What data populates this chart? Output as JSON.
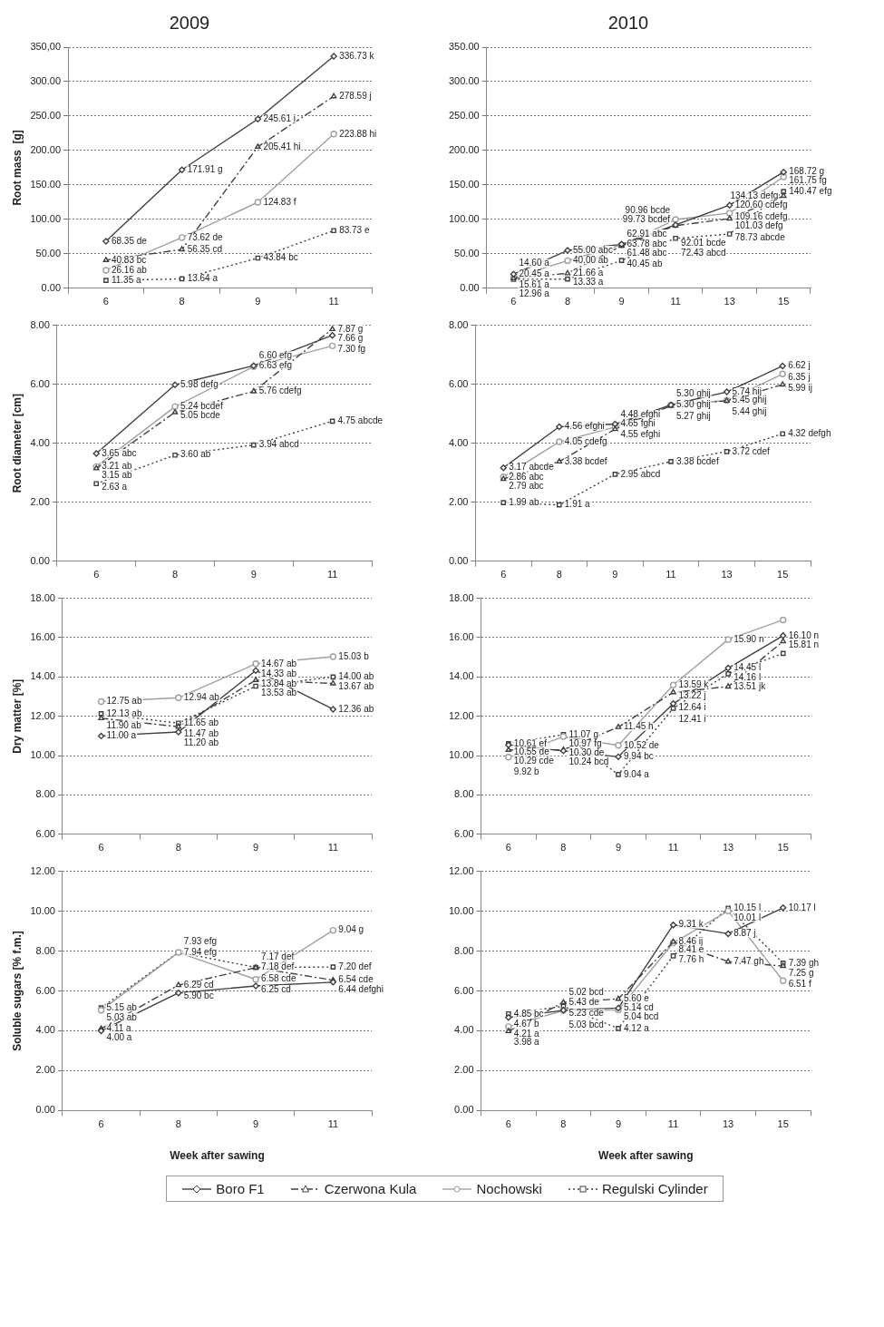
{
  "chart_data": [
    {
      "type": "line",
      "title": "2009",
      "ylabel": "Root mass  [g]",
      "categories": [
        "6",
        "8",
        "9",
        "11"
      ],
      "ylim": [
        0,
        350
      ],
      "yticks": [
        {
          "value": 0,
          "label": "0.00"
        },
        {
          "value": 50,
          "label": "50.00"
        },
        {
          "value": 100,
          "label": "100.00"
        },
        {
          "value": 150,
          "label": "150.00"
        },
        {
          "value": 200,
          "label": "200.00"
        },
        {
          "value": 250,
          "label": "250.00"
        },
        {
          "value": 300,
          "label": "300.00"
        },
        {
          "value": 350,
          "label": "350,00"
        }
      ],
      "grid": "y",
      "series": [
        {
          "color": "#404040",
          "marker": "diamond",
          "line_style": "solid",
          "values": [
            68.35,
            171.91,
            245.61,
            336.73
          ],
          "value_labels": [
            "68.35 de",
            "171.91 g",
            "245.61 i",
            "336.73 k"
          ]
        },
        {
          "color": "#404040",
          "marker": "triangle",
          "line_style": "dashed",
          "values": [
            40.83,
            56.35,
            205.41,
            278.59
          ],
          "value_labels": [
            "40.83 bc",
            "56.35 cd",
            "205.41 hi",
            "278.59 j"
          ]
        },
        {
          "color": "#a0a0a0",
          "marker": "circle",
          "line_style": "solid",
          "values": [
            26.16,
            73.62,
            124.83,
            223.88
          ],
          "value_labels": [
            "26.16 ab",
            "73.62 de",
            "124.83 f",
            "223.88 hi"
          ]
        },
        {
          "color": "#404040",
          "marker": "square",
          "line_style": "dotted",
          "values": [
            11.35,
            13.64,
            43.84,
            83.73
          ],
          "value_labels": [
            "11.35 a",
            "13.64 a",
            "43.84 bc",
            "83.73 e"
          ]
        }
      ]
    },
    {
      "type": "line",
      "title": "2010",
      "categories": [
        "6",
        "8",
        "9",
        "11",
        "13",
        "15"
      ],
      "ylim": [
        0,
        350
      ],
      "yticks": [
        {
          "value": 0,
          "label": "0.00"
        },
        {
          "value": 50,
          "label": "50.00"
        },
        {
          "value": 100,
          "label": "100.00"
        },
        {
          "value": 150,
          "label": "150.00"
        },
        {
          "value": 200,
          "label": "200.00"
        },
        {
          "value": 250,
          "label": "250.00"
        },
        {
          "value": 300,
          "label": "300.00"
        },
        {
          "value": 350,
          "label": "350.00"
        }
      ],
      "grid": "y",
      "series": [
        {
          "color": "#404040",
          "marker": "diamond",
          "line_style": "solid",
          "values": [
            20.45,
            55.0,
            63.78,
            92.01,
            120.6,
            168.72
          ],
          "value_labels": [
            "20.45 a",
            "55.00 abc",
            "63.78 abc",
            "92.01 bcde",
            "120.60 cdefg",
            "168.72 g"
          ]
        },
        {
          "color": "#404040",
          "marker": "triangle",
          "line_style": "dashed",
          "values": [
            14.6,
            21.66,
            61.48,
            90.96,
            101.03,
            134.13
          ],
          "value_labels": [
            "14.60 a",
            "21.66 a",
            "61.48 abc",
            "90.96 bcde",
            "101.03 defg",
            "134.13 defg"
          ]
        },
        {
          "color": "#a0a0a0",
          "marker": "circle",
          "line_style": "solid",
          "values": [
            15.61,
            40.0,
            62.91,
            99.73,
            109.16,
            161.75
          ],
          "value_labels": [
            "15.61 a",
            "40.00 ab",
            "62.91 abc",
            "99.73 bcdef",
            "109.16 cdefg",
            "161.75 fg"
          ]
        },
        {
          "color": "#404040",
          "marker": "square",
          "line_style": "dotted",
          "values": [
            12.96,
            13.33,
            40.45,
            72.43,
            78.73,
            140.47
          ],
          "value_labels": [
            "12.96 a",
            "13.33 a",
            "40.45 ab",
            "72.43 abcd",
            "78.73 abcde",
            "140.47 efg"
          ]
        }
      ]
    },
    {
      "type": "line",
      "ylabel": "Root diameter [cm]",
      "categories": [
        "6",
        "8",
        "9",
        "11"
      ],
      "ylim": [
        0,
        8
      ],
      "yticks": [
        {
          "value": 0,
          "label": "0.00"
        },
        {
          "value": 2,
          "label": "2.00"
        },
        {
          "value": 4,
          "label": "4.00"
        },
        {
          "value": 6,
          "label": "6.00"
        },
        {
          "value": 8,
          "label": "8.00"
        }
      ],
      "grid": "y",
      "series": [
        {
          "color": "#404040",
          "marker": "diamond",
          "line_style": "solid",
          "values": [
            3.65,
            5.98,
            6.63,
            7.66
          ],
          "value_labels": [
            "3.65 abc",
            "5.98 defg",
            "6.63 efg",
            "7.66 g"
          ]
        },
        {
          "color": "#404040",
          "marker": "triangle",
          "line_style": "dashed",
          "values": [
            3.15,
            5.05,
            5.76,
            7.87
          ],
          "value_labels": [
            "3.15 ab",
            "5.05 bcde",
            "5.76 cdefg",
            "7.87 g"
          ]
        },
        {
          "color": "#a0a0a0",
          "marker": "circle",
          "line_style": "solid",
          "values": [
            3.21,
            5.24,
            6.6,
            7.3
          ],
          "value_labels": [
            "3.21 ab",
            "5.24 bcdef",
            "6.60 efg",
            "7.30 fg"
          ]
        },
        {
          "color": "#404040",
          "marker": "square",
          "line_style": "dotted",
          "values": [
            2.63,
            3.6,
            3.94,
            4.75
          ],
          "value_labels": [
            "2.63 a",
            "3.60 ab",
            "3.94 abcd",
            "4.75 abcde"
          ]
        }
      ]
    },
    {
      "type": "line",
      "categories": [
        "6",
        "8",
        "9",
        "11",
        "13",
        "15"
      ],
      "ylim": [
        0,
        8
      ],
      "yticks": [
        {
          "value": 0,
          "label": "0.00"
        },
        {
          "value": 2,
          "label": "2.00"
        },
        {
          "value": 4,
          "label": "4.00"
        },
        {
          "value": 6,
          "label": "6.00"
        },
        {
          "value": 8,
          "label": "8.00"
        }
      ],
      "grid": "y",
      "series": [
        {
          "color": "#404040",
          "marker": "diamond",
          "line_style": "solid",
          "values": [
            3.17,
            4.56,
            4.65,
            5.3,
            5.74,
            6.62
          ],
          "value_labels": [
            "3.17 abcde",
            "4.56 efghi",
            "4.65 fghi",
            "5.30 ghij",
            "5.74 hij",
            "6.62 j"
          ]
        },
        {
          "color": "#404040",
          "marker": "triangle",
          "line_style": "dashed",
          "values": [
            2.79,
            3.38,
            4.48,
            5.27,
            5.44,
            5.99
          ],
          "value_labels": [
            "2.79 abc",
            "3.38 bcdef",
            "4.48 efghi",
            "5.27 ghij",
            "5.44 ghij",
            "5.99 ij"
          ]
        },
        {
          "color": "#a0a0a0",
          "marker": "circle",
          "line_style": "solid",
          "values": [
            2.86,
            4.05,
            4.55,
            5.3,
            5.45,
            6.35
          ],
          "value_labels": [
            "2.86 abc",
            "4.05 cdefg",
            "4.55 efghi",
            "5.30 ghij",
            "5.45 ghij",
            "6.35 j"
          ]
        },
        {
          "color": "#404040",
          "marker": "square",
          "line_style": "dotted",
          "values": [
            1.99,
            1.91,
            2.95,
            3.38,
            3.72,
            4.32
          ],
          "value_labels": [
            "1.99 ab",
            "1.91 a",
            "2.95 abcd",
            "3.38 bcdef",
            "3.72 cdef",
            "4.32 defgh"
          ]
        }
      ]
    },
    {
      "type": "line",
      "ylabel": "Dry matter [%]",
      "categories": [
        "6",
        "8",
        "9",
        "11"
      ],
      "ylim": [
        6,
        18
      ],
      "yticks": [
        {
          "value": 6,
          "label": "6.00"
        },
        {
          "value": 8,
          "label": "8.00"
        },
        {
          "value": 10,
          "label": "10.00"
        },
        {
          "value": 12,
          "label": "12.00"
        },
        {
          "value": 14,
          "label": "14.00"
        },
        {
          "value": 16,
          "label": "16.00"
        },
        {
          "value": 18,
          "label": "18.00"
        }
      ],
      "grid": "y",
      "series": [
        {
          "color": "#404040",
          "marker": "diamond",
          "line_style": "solid",
          "values": [
            11.0,
            11.2,
            14.33,
            12.36
          ],
          "value_labels": [
            "11.00 a",
            "11.20 ab",
            "14.33 ab",
            "12.36 ab"
          ]
        },
        {
          "color": "#404040",
          "marker": "triangle",
          "line_style": "dashed",
          "values": [
            11.9,
            11.47,
            13.84,
            13.67
          ],
          "value_labels": [
            "11.90 ab",
            "11.47 ab",
            "13.84 ab",
            "13.67 ab"
          ]
        },
        {
          "color": "#a0a0a0",
          "marker": "circle",
          "line_style": "solid",
          "values": [
            12.75,
            12.94,
            14.67,
            15.03
          ],
          "value_labels": [
            "12.75 ab",
            "12.94 ab",
            "14.67 ab",
            "15.03 b"
          ]
        },
        {
          "color": "#404040",
          "marker": "square",
          "line_style": "dotted",
          "values": [
            12.13,
            11.65,
            13.53,
            14.0
          ],
          "value_labels": [
            "12.13 ab",
            "11.65 ab",
            "13.53 ab",
            "14.00 ab"
          ]
        }
      ]
    },
    {
      "type": "line",
      "categories": [
        "6",
        "8",
        "9",
        "11",
        "13",
        "15"
      ],
      "ylim": [
        6,
        18
      ],
      "yticks": [
        {
          "value": 6,
          "label": "6.00"
        },
        {
          "value": 8,
          "label": "8.00"
        },
        {
          "value": 10,
          "label": "10.00"
        },
        {
          "value": 12,
          "label": "12.00"
        },
        {
          "value": 14,
          "label": "14.00"
        },
        {
          "value": 16,
          "label": "16.00"
        },
        {
          "value": 18,
          "label": "18.00"
        }
      ],
      "grid": "y",
      "series": [
        {
          "color": "#404040",
          "marker": "diamond",
          "line_style": "solid",
          "values": [
            10.55,
            10.24,
            9.94,
            12.64,
            14.45,
            16.1
          ],
          "value_labels": [
            "10.55 de",
            "10.24 bcd",
            "9.94 bc",
            "12.64 i",
            "14.45 l",
            "16.10 n"
          ]
        },
        {
          "color": "#404040",
          "marker": "triangle",
          "line_style": "dashed",
          "values": [
            10.29,
            10.3,
            11.45,
            13.22,
            13.51,
            15.81
          ],
          "value_labels": [
            "10.29 cde",
            "10.30 de",
            "11.45 h",
            "13.22 j",
            "13.51 jk",
            "15.81 n"
          ]
        },
        {
          "color": "#a0a0a0",
          "marker": "circle",
          "line_style": "solid",
          "values": [
            9.92,
            10.97,
            10.52,
            13.59,
            15.9,
            16.9
          ],
          "value_labels": [
            "9.92 b",
            "10.97 fg",
            "10.52 de",
            "13.59 k",
            "15.90 n",
            null
          ]
        },
        {
          "color": "#404040",
          "marker": "square",
          "line_style": "dotted",
          "values": [
            10.61,
            11.07,
            9.04,
            12.41,
            14.16,
            15.2
          ],
          "value_labels": [
            "10.61 ef",
            "11.07 g",
            "9.04 a",
            "12.41 i",
            "14.16 l",
            null
          ]
        }
      ]
    },
    {
      "type": "line",
      "ylabel": "Soluble sugars [% f.m.]",
      "xlabel": "Week after sawing",
      "categories": [
        "6",
        "8",
        "9",
        "11"
      ],
      "ylim": [
        0,
        12
      ],
      "yticks": [
        {
          "value": 0,
          "label": "0.00"
        },
        {
          "value": 2,
          "label": "2.00"
        },
        {
          "value": 4,
          "label": "4.00"
        },
        {
          "value": 6,
          "label": "6.00"
        },
        {
          "value": 8,
          "label": "8.00"
        },
        {
          "value": 10,
          "label": "10.00"
        },
        {
          "value": 12,
          "label": "12.00"
        }
      ],
      "grid": "y",
      "series": [
        {
          "color": "#404040",
          "marker": "diamond",
          "line_style": "solid",
          "values": [
            4.0,
            5.9,
            6.25,
            6.44
          ],
          "value_labels": [
            "4.00 a",
            "5.90 bc",
            "6.25 cd",
            "6.44 defghi"
          ]
        },
        {
          "color": "#404040",
          "marker": "triangle",
          "line_style": "dashed",
          "values": [
            4.11,
            6.29,
            7.17,
            6.54
          ],
          "value_labels": [
            "4.11 a",
            "6.29 cd",
            "7.17 def",
            "6.54 cde"
          ]
        },
        {
          "color": "#a0a0a0",
          "marker": "circle",
          "line_style": "solid",
          "values": [
            5.03,
            7.93,
            6.58,
            9.04
          ],
          "value_labels": [
            "5.03 ab",
            "7.93 efg",
            "6.58 cde",
            "9.04 g"
          ]
        },
        {
          "color": "#404040",
          "marker": "square",
          "line_style": "dotted",
          "values": [
            5.15,
            7.94,
            7.18,
            7.2
          ],
          "value_labels": [
            "5.15 ab",
            "7.94 efg",
            "7.18 def",
            "7.20 def"
          ]
        }
      ]
    },
    {
      "type": "line",
      "xlabel": "Week after sawing",
      "categories": [
        "6",
        "8",
        "9",
        "11",
        "13",
        "15"
      ],
      "ylim": [
        0,
        12
      ],
      "yticks": [
        {
          "value": 0,
          "label": "0.00"
        },
        {
          "value": 2,
          "label": "2.00"
        },
        {
          "value": 4,
          "label": "4.00"
        },
        {
          "value": 6,
          "label": "6.00"
        },
        {
          "value": 8,
          "label": "8.00"
        },
        {
          "value": 10,
          "label": "10.00"
        },
        {
          "value": 12,
          "label": "12.00"
        }
      ],
      "grid": "y",
      "legend": "bottom",
      "series": [
        {
          "name": "Boro F1",
          "color": "#404040",
          "marker": "diamond",
          "line_style": "solid",
          "values": [
            4.67,
            5.03,
            5.14,
            9.31,
            8.87,
            10.17
          ],
          "value_labels": [
            "4.67 b",
            "5.03 bcd",
            "5.14 cd",
            "9.31 k",
            "8.87 j",
            "10.17 l"
          ]
        },
        {
          "name": "Czerwona Kula",
          "color": "#404040",
          "marker": "triangle",
          "line_style": "dashed",
          "values": [
            3.98,
            5.43,
            5.6,
            8.46,
            7.47,
            7.25
          ],
          "value_labels": [
            "3.98 a",
            "5.43 de",
            "5.60 e",
            "8.46 ij",
            "7.47 gh",
            "7.25 g"
          ]
        },
        {
          "name": "Nochowski",
          "color": "#a0a0a0",
          "marker": "circle",
          "line_style": "solid",
          "values": [
            4.21,
            5.02,
            5.04,
            8.41,
            10.01,
            6.51
          ],
          "value_labels": [
            "4.21 a",
            "5.02 bcd",
            "5.04 bcd",
            "8.41 e",
            "10.01 l",
            "6.51 f"
          ]
        },
        {
          "name": "Regulski Cylinder",
          "color": "#404040",
          "marker": "square",
          "line_style": "dotted",
          "values": [
            4.85,
            5.23,
            4.12,
            7.76,
            10.15,
            7.39
          ],
          "value_labels": [
            "4.85 bc",
            "5.23 cde",
            "4.12 a",
            "7.76 h",
            "10.15 l",
            "7.39 gh"
          ]
        }
      ]
    }
  ]
}
